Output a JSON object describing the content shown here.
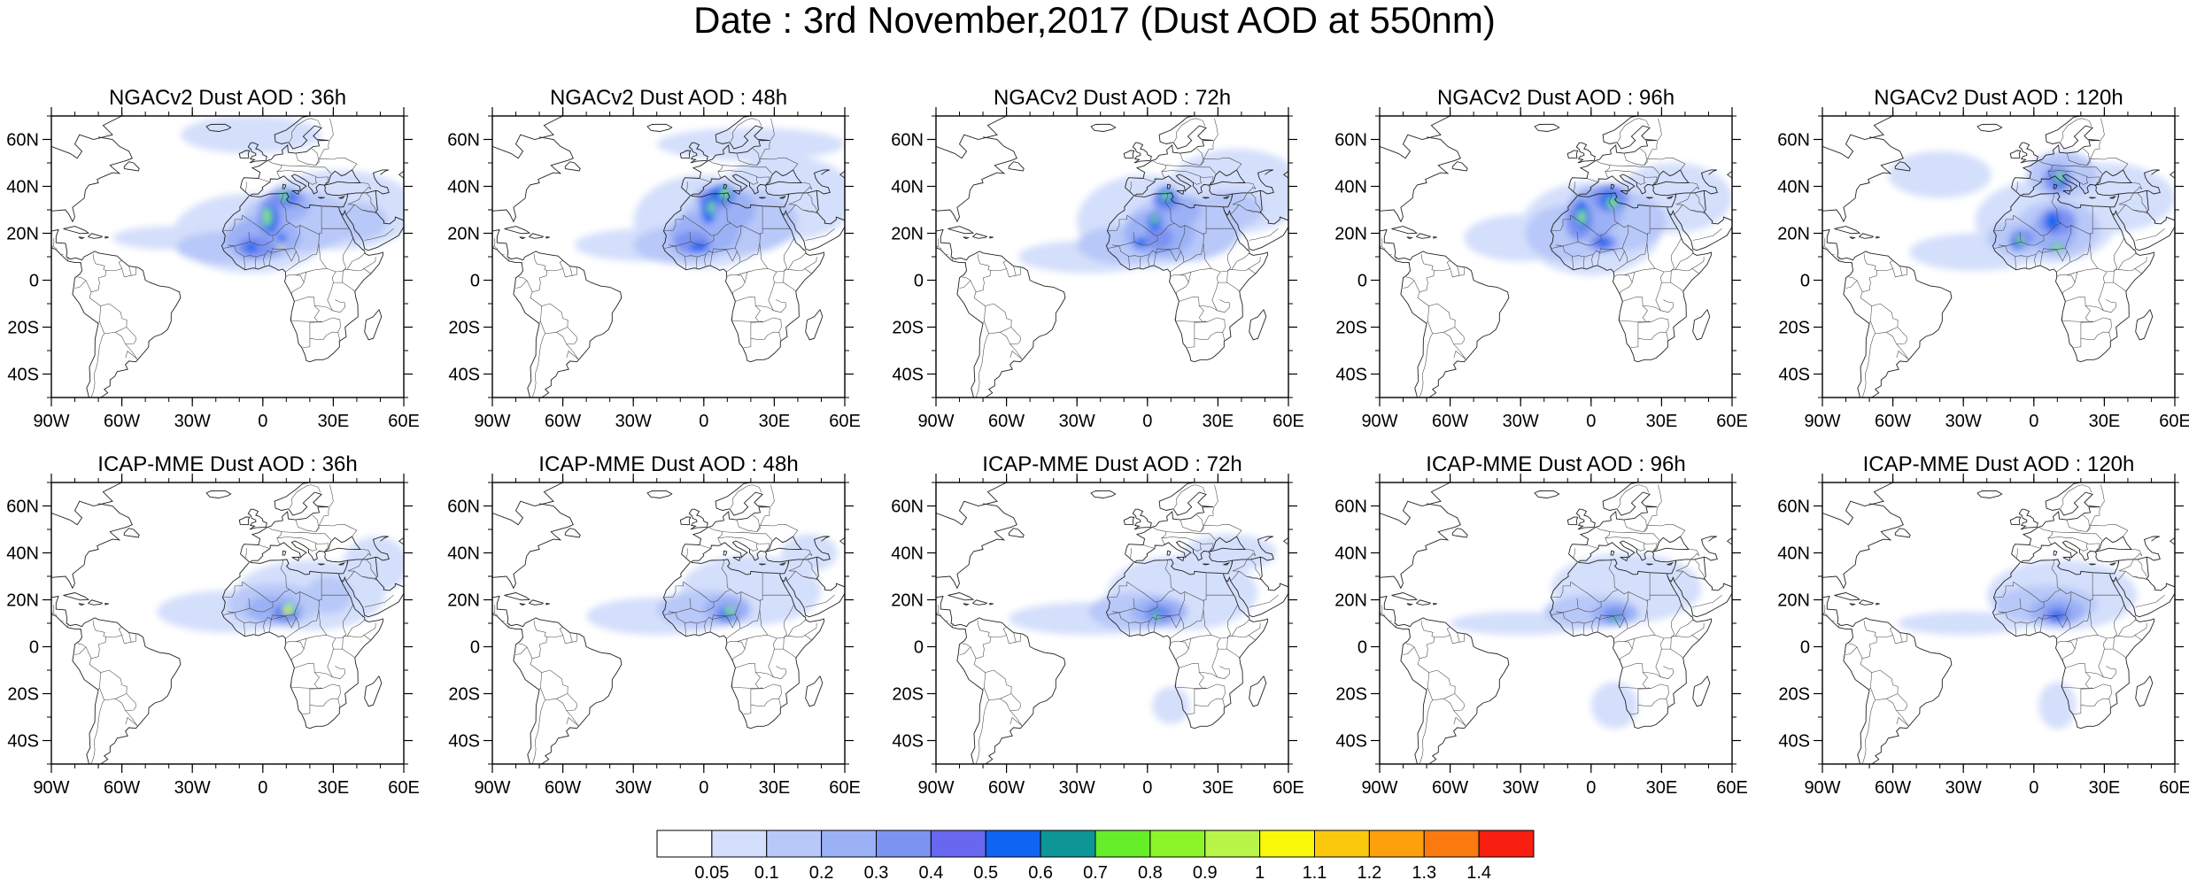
{
  "title": "Date : 3rd November,2017 (Dust AOD at 550nm)",
  "lon_ticks": [
    "90W",
    "60W",
    "30W",
    "0",
    "30E",
    "60E"
  ],
  "lat_ticks": [
    "60N",
    "40N",
    "20N",
    "0",
    "20S",
    "40S"
  ],
  "extent": {
    "lon": [
      -90,
      60
    ],
    "lat": [
      -50,
      70
    ]
  },
  "rows": [
    {
      "model": "NGACv2",
      "panels": [
        {
          "title": "NGACv2 Dust AOD : 36h",
          "lead": "36h"
        },
        {
          "title": "NGACv2 Dust AOD : 48h",
          "lead": "48h"
        },
        {
          "title": "NGACv2 Dust AOD : 72h",
          "lead": "72h"
        },
        {
          "title": "NGACv2 Dust AOD : 96h",
          "lead": "96h"
        },
        {
          "title": "NGACv2 Dust AOD : 120h",
          "lead": "120h"
        }
      ]
    },
    {
      "model": "ICAP-MME",
      "panels": [
        {
          "title": "ICAP-MME Dust AOD : 36h",
          "lead": "36h"
        },
        {
          "title": "ICAP-MME Dust AOD : 48h",
          "lead": "48h"
        },
        {
          "title": "ICAP-MME Dust AOD : 72h",
          "lead": "72h"
        },
        {
          "title": "ICAP-MME Dust AOD : 96h",
          "lead": "96h"
        },
        {
          "title": "ICAP-MME Dust AOD : 120h",
          "lead": "120h"
        }
      ]
    }
  ],
  "colorbar": {
    "colors": [
      "#ffffff",
      "#d4dffb",
      "#b8c8f8",
      "#9bb1f6",
      "#7d93f1",
      "#6767ef",
      "#0f64f2",
      "#0e9696",
      "#66ee2a",
      "#8cf52a",
      "#b8f548",
      "#f8f80a",
      "#fcc80e",
      "#fca00c",
      "#fa7a10",
      "#f81e10"
    ],
    "labels": [
      "0.05",
      "0.1",
      "0.2",
      "0.3",
      "0.4",
      "0.5",
      "0.6",
      "0.7",
      "0.8",
      "0.9",
      "1",
      "1.1",
      "1.2",
      "1.3",
      "1.4"
    ]
  }
}
